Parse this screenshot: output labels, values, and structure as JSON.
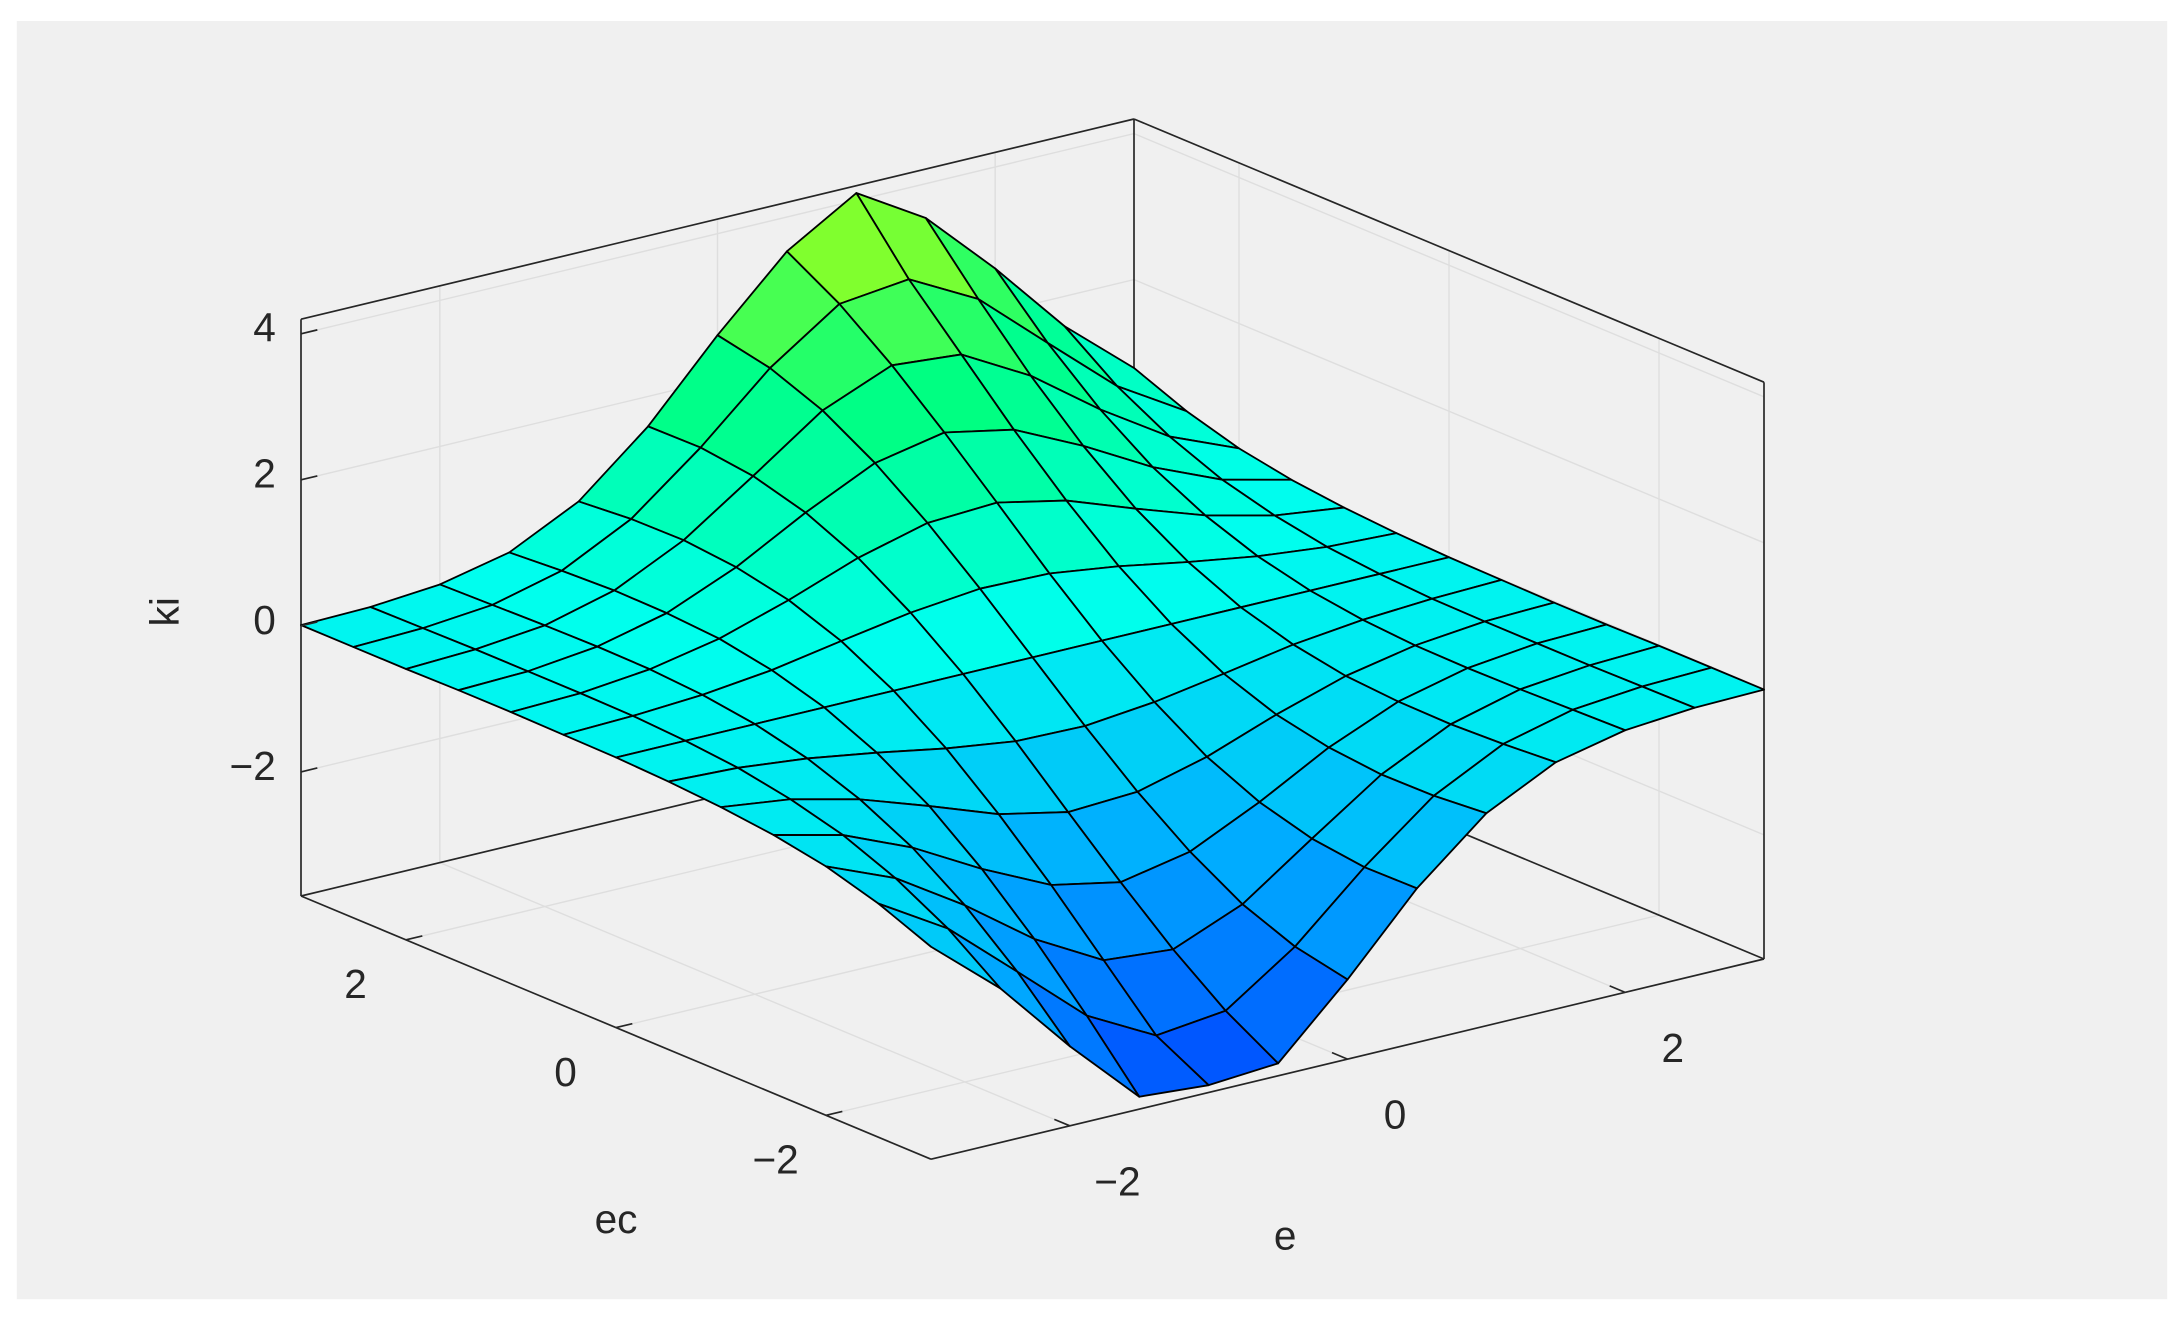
{
  "chart_data": {
    "type": "surface",
    "xlabel": "e",
    "ylabel": "ec",
    "zlabel": "ki",
    "x": [
      -3,
      -2.5,
      -2,
      -1.5,
      -1,
      -0.5,
      0,
      0.5,
      1,
      1.5,
      2,
      2.5,
      3
    ],
    "y": [
      -3,
      -2.5,
      -2,
      -1.5,
      -1,
      -0.5,
      0,
      0.5,
      1,
      1.5,
      2,
      2.5,
      3
    ],
    "z": [
      [
        -0.79,
        -1.59,
        -2.61,
        -3.53,
        -3.6,
        -3.53,
        -2.61,
        -1.59,
        -0.79,
        -0.32,
        -0.11,
        -0.03,
        -0.01
      ],
      [
        -0.5,
        -1.07,
        -1.89,
        -2.72,
        -3.22,
        -3.11,
        -2.46,
        -1.6,
        -0.85,
        -0.37,
        -0.13,
        -0.04,
        -0.01
      ],
      [
        -0.29,
        -0.68,
        -1.28,
        -1.97,
        -2.49,
        -2.57,
        -2.18,
        -1.51,
        -0.86,
        -0.4,
        -0.15,
        -0.05,
        -0.01
      ],
      [
        -0.16,
        -0.39,
        -0.79,
        -1.31,
        -1.76,
        -1.95,
        -1.76,
        -1.31,
        -0.79,
        -0.39,
        -0.16,
        -0.05,
        -0.02
      ],
      [
        -0.08,
        -0.2,
        -0.43,
        -0.75,
        -1.09,
        -1.29,
        -1.24,
        -0.99,
        -0.64,
        -0.34,
        -0.15,
        -0.05,
        -0.02
      ],
      [
        -0.03,
        -0.07,
        -0.17,
        -0.32,
        -0.49,
        -0.62,
        -0.64,
        -0.54,
        -0.38,
        -0.21,
        -0.1,
        -0.04,
        -0.01
      ],
      [
        0,
        0,
        0,
        0,
        0,
        0,
        0,
        0,
        0,
        0,
        0,
        0,
        0
      ],
      [
        0.01,
        0.04,
        0.1,
        0.21,
        0.38,
        0.54,
        0.64,
        0.62,
        0.49,
        0.32,
        0.17,
        0.07,
        0.03
      ],
      [
        0.02,
        0.05,
        0.15,
        0.34,
        0.64,
        0.99,
        1.24,
        1.29,
        1.09,
        0.75,
        0.43,
        0.2,
        0.08
      ],
      [
        0.02,
        0.05,
        0.16,
        0.39,
        0.79,
        1.31,
        1.76,
        1.95,
        1.76,
        1.31,
        0.79,
        0.39,
        0.16
      ],
      [
        0.01,
        0.05,
        0.15,
        0.4,
        0.86,
        1.51,
        2.18,
        2.57,
        2.49,
        1.97,
        1.28,
        0.68,
        0.29
      ],
      [
        0.01,
        0.04,
        0.13,
        0.37,
        0.85,
        1.6,
        2.46,
        3.11,
        3.22,
        2.72,
        1.89,
        1.07,
        0.5
      ],
      [
        0.01,
        0.03,
        0.11,
        0.32,
        0.79,
        1.59,
        2.61,
        3.53,
        4.1,
        3.53,
        2.61,
        1.59,
        0.79
      ]
    ],
    "xlim": [
      -3,
      3
    ],
    "ylim": [
      -3,
      3
    ],
    "zlim": [
      -3.7,
      4.2
    ],
    "xticks": [
      {
        "value": -2,
        "label": "−2"
      },
      0,
      2
    ],
    "yticks": [
      {
        "value": -2,
        "label": "−2"
      },
      0,
      2
    ],
    "zticks": [
      {
        "value": -2,
        "label": "−2"
      },
      0,
      2,
      4
    ],
    "grid": true,
    "colormap": [
      "#0046ff",
      "#00aaff",
      "#00ffee",
      "#00ff80",
      "#c8ff00"
    ],
    "edge_color": "#000000"
  }
}
